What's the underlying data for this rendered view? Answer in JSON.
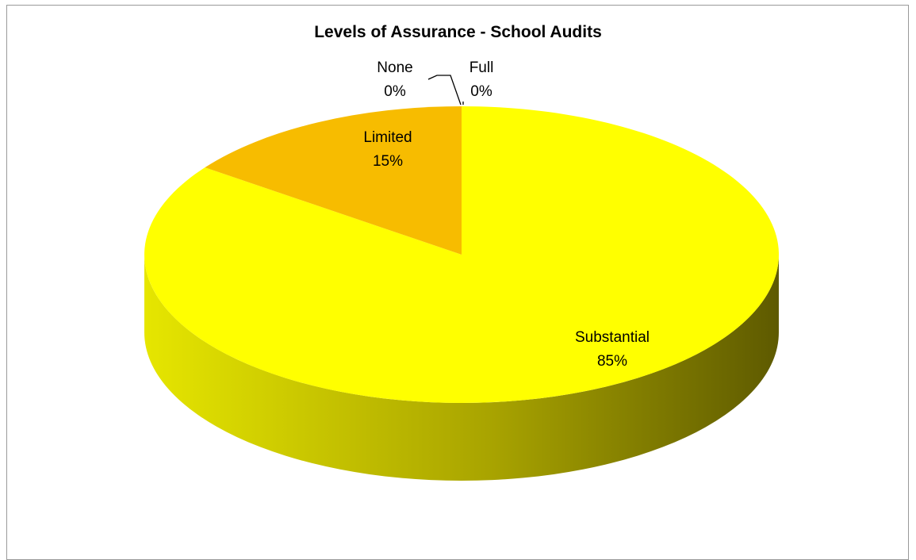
{
  "chart_data": {
    "type": "pie",
    "title": "Levels of Assurance - School Audits",
    "categories": [
      "Full",
      "Substantial",
      "Limited",
      "None"
    ],
    "values": [
      0,
      85,
      15,
      0
    ],
    "labels": [
      "0%",
      "85%",
      "15%",
      "0%"
    ],
    "colors": {
      "Full": "#9fb9d6",
      "Substantial": "#ffff00",
      "Limited": "#f7bc00",
      "None": "#d99594",
      "side_light": "#d9d900",
      "side_dark": "#6b6600"
    },
    "three_d": true,
    "legend": "none"
  }
}
